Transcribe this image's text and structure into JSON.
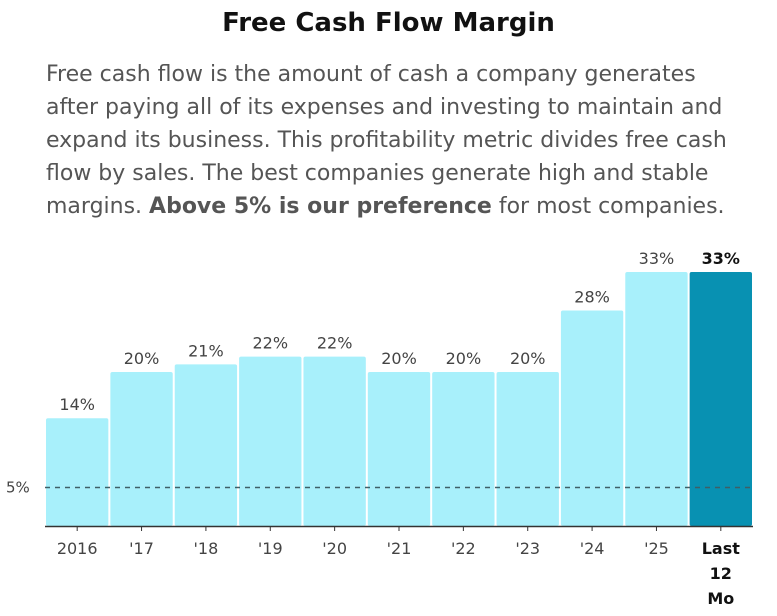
{
  "title": "Free Cash Flow Margin",
  "description": {
    "part1": "Free cash flow is the amount of cash a company generates after paying all of its expenses and investing to maintain and expand its business. This profitability metric divides free cash flow by sales. The best companies generate high and stable margins. ",
    "bold": "Above 5% is our preference",
    "part2": " for most companies."
  },
  "chart_data": {
    "type": "bar",
    "title": "Free Cash Flow Margin",
    "categories": [
      "2016",
      "'17",
      "'18",
      "'19",
      "'20",
      "'21",
      "'22",
      "'23",
      "'24",
      "'25",
      "Last 12 Mo"
    ],
    "values": [
      14,
      20,
      21,
      22,
      22,
      20,
      20,
      20,
      28,
      33,
      33
    ],
    "value_labels": [
      "14%",
      "20%",
      "21%",
      "22%",
      "22%",
      "20%",
      "20%",
      "20%",
      "28%",
      "33%",
      "33%"
    ],
    "highlight_index": 10,
    "reference_line": {
      "value": 5,
      "label": "5%"
    },
    "ylim": [
      0,
      33
    ],
    "colors": {
      "bar": "#a8f0fb",
      "highlight": "#0891b2",
      "axis": "#333333",
      "reference": "#3f5f66"
    }
  }
}
